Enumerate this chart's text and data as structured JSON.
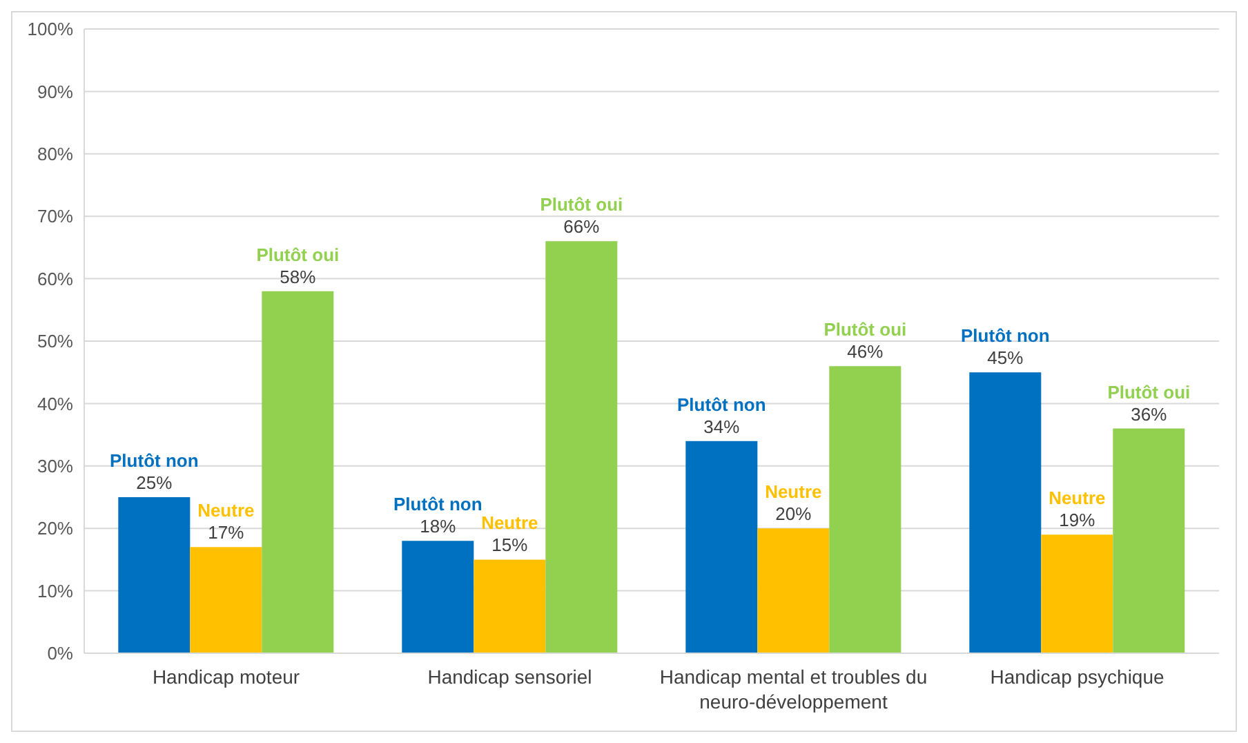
{
  "chart_data": {
    "type": "bar",
    "categories": [
      "Handicap moteur",
      "Handicap sensoriel",
      "Handicap mental et troubles du neuro-développement",
      "Handicap psychique"
    ],
    "series": [
      {
        "name": "Plutôt non",
        "color": "#0070c0",
        "values": [
          25,
          18,
          34,
          45
        ],
        "value_labels": [
          "25%",
          "18%",
          "34%",
          "45%"
        ]
      },
      {
        "name": "Neutre",
        "color": "#ffc000",
        "values": [
          17,
          15,
          20,
          19
        ],
        "value_labels": [
          "17%",
          "15%",
          "20%",
          "19%"
        ]
      },
      {
        "name": "Plutôt oui",
        "color": "#92d050",
        "values": [
          58,
          66,
          46,
          36
        ],
        "value_labels": [
          "58%",
          "66%",
          "46%",
          "36%"
        ]
      }
    ],
    "ylim": [
      0,
      100
    ],
    "yticks": [
      {
        "value": 0,
        "label": "0%"
      },
      {
        "value": 10,
        "label": "10%"
      },
      {
        "value": 20,
        "label": "20%"
      },
      {
        "value": 30,
        "label": "30%"
      },
      {
        "value": 40,
        "label": "40%"
      },
      {
        "value": 50,
        "label": "50%"
      },
      {
        "value": 60,
        "label": "60%"
      },
      {
        "value": 70,
        "label": "70%"
      },
      {
        "value": 80,
        "label": "80%"
      },
      {
        "value": 90,
        "label": "90%"
      },
      {
        "value": 100,
        "label": "100%"
      }
    ],
    "grid": "y",
    "legend": false
  }
}
